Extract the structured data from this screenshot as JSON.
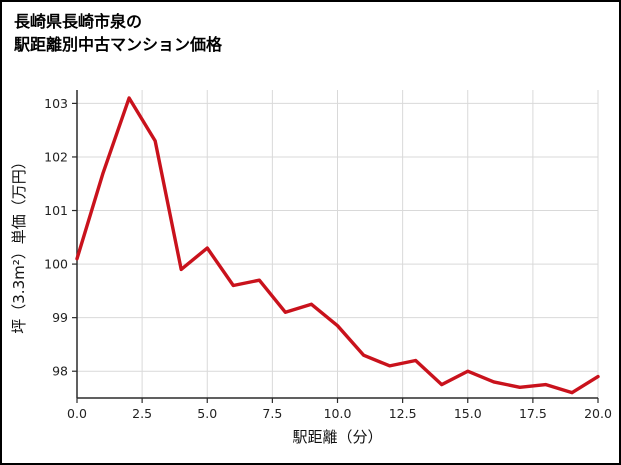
{
  "title": {
    "line1": "長崎県長崎市泉の",
    "line2": "駅距離別中古マンション価格"
  },
  "chart_data": {
    "type": "line",
    "title": "長崎県長崎市泉の駅距離別中古マンション価格",
    "xlabel": "駅距離（分）",
    "ylabel": "坪（3.3m²）単価（万円）",
    "x": [
      0,
      1,
      2,
      3,
      4,
      5,
      6,
      7,
      8,
      9,
      10,
      11,
      12,
      13,
      14,
      15,
      16,
      17,
      18,
      19,
      20
    ],
    "values": [
      100.1,
      101.7,
      103.1,
      102.3,
      99.9,
      100.3,
      99.6,
      99.7,
      99.1,
      99.25,
      98.85,
      98.3,
      98.1,
      98.2,
      97.75,
      98.0,
      97.8,
      97.7,
      97.75,
      97.6,
      97.9
    ],
    "x_ticks": [
      0,
      2.5,
      5,
      7.5,
      10,
      12.5,
      15,
      17.5,
      20
    ],
    "x_tick_labels": [
      "0.0",
      "2.5",
      "5.0",
      "7.5",
      "10.0",
      "12.5",
      "15.0",
      "17.5",
      "20.0"
    ],
    "y_ticks": [
      98,
      99,
      100,
      101,
      102,
      103
    ],
    "y_tick_labels": [
      "98",
      "99",
      "100",
      "101",
      "102",
      "103"
    ],
    "xlim": [
      0,
      20
    ],
    "ylim": [
      97.5,
      103.25
    ],
    "grid": true,
    "legend": "none",
    "line_color": "#c9121c",
    "grid_color": "#d9d9d9",
    "axis_color": "#2b2b2b",
    "tick_label_color": "#222222"
  }
}
